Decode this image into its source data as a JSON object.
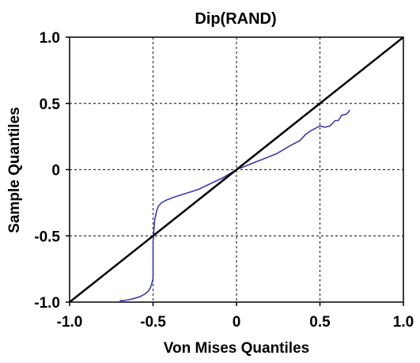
{
  "chart_data": {
    "type": "line",
    "title": "Dip(RAND)",
    "xlabel": "Von Mises Quantiles",
    "ylabel": "Sample Quantiles",
    "xlim": [
      -1.0,
      1.0
    ],
    "ylim": [
      -1.0,
      1.0
    ],
    "x_ticks": [
      -1.0,
      -0.5,
      0,
      0.5,
      1.0
    ],
    "y_ticks": [
      -1.0,
      -0.5,
      0,
      0.5,
      1.0
    ],
    "x_tick_labels": [
      "-1.0",
      "-0.5",
      "0",
      "0.5",
      "1.0"
    ],
    "y_tick_labels": [
      "-1.0",
      "-0.5",
      "0",
      "0.5",
      "1.0"
    ],
    "grid": true,
    "series": [
      {
        "color": "#3c3ca8",
        "x": [
          -0.7,
          -0.66,
          -0.62,
          -0.58,
          -0.55,
          -0.53,
          -0.515,
          -0.505,
          -0.5,
          -0.5,
          -0.495,
          -0.49,
          -0.48,
          -0.47,
          -0.45,
          -0.42,
          -0.38,
          -0.33,
          -0.28,
          -0.23,
          -0.18,
          -0.13,
          -0.08,
          -0.04,
          0.0,
          0.04,
          0.08,
          0.12,
          0.16,
          0.2,
          0.24,
          0.28,
          0.32,
          0.35,
          0.38,
          0.41,
          0.44,
          0.47,
          0.5,
          0.53,
          0.56,
          0.59,
          0.61,
          0.63,
          0.66,
          0.68
        ],
        "y": [
          -0.99,
          -0.985,
          -0.975,
          -0.96,
          -0.94,
          -0.92,
          -0.89,
          -0.85,
          -0.82,
          -0.55,
          -0.45,
          -0.38,
          -0.32,
          -0.28,
          -0.25,
          -0.23,
          -0.21,
          -0.19,
          -0.17,
          -0.15,
          -0.12,
          -0.09,
          -0.06,
          -0.03,
          0.0,
          0.02,
          0.04,
          0.06,
          0.08,
          0.1,
          0.12,
          0.15,
          0.18,
          0.2,
          0.22,
          0.26,
          0.29,
          0.31,
          0.33,
          0.32,
          0.33,
          0.37,
          0.37,
          0.41,
          0.42,
          0.45
        ]
      },
      {
        "color": "#000000",
        "x": [
          -1.0,
          1.0
        ],
        "y": [
          -1.0,
          1.0
        ]
      }
    ]
  }
}
